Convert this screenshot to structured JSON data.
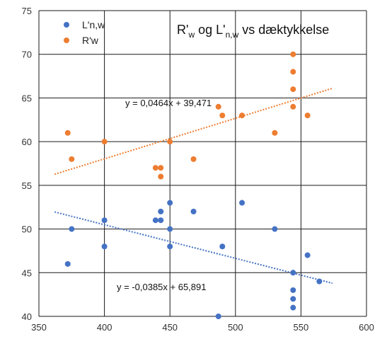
{
  "chart_data": {
    "type": "scatter",
    "title_parts": [
      {
        "text": "R'",
        "sub": false
      },
      {
        "text": "w",
        "sub": true
      },
      {
        "text": " og L'",
        "sub": false
      },
      {
        "text": "n,w",
        "sub": true
      },
      {
        "text": " vs dæktykkelse",
        "sub": false
      }
    ],
    "xlabel": "",
    "ylabel": "",
    "xlim": [
      350,
      600
    ],
    "ylim": [
      40,
      75
    ],
    "x_ticks": [
      350,
      400,
      450,
      500,
      550,
      600
    ],
    "y_ticks": [
      40,
      45,
      50,
      55,
      60,
      65,
      70,
      75
    ],
    "grid": true,
    "legend_position": "top-left",
    "series": [
      {
        "name": "L'n,w",
        "color": "#4472C4",
        "points": [
          [
            372,
            46
          ],
          [
            375,
            50
          ],
          [
            400,
            51
          ],
          [
            400,
            48
          ],
          [
            439,
            51
          ],
          [
            443,
            52
          ],
          [
            443,
            51
          ],
          [
            450,
            53
          ],
          [
            450,
            50
          ],
          [
            450,
            48
          ],
          [
            468,
            52
          ],
          [
            487,
            40
          ],
          [
            490,
            48
          ],
          [
            505,
            53
          ],
          [
            530,
            50
          ],
          [
            544,
            45
          ],
          [
            544,
            43
          ],
          [
            544,
            42
          ],
          [
            544,
            41
          ],
          [
            555,
            47
          ],
          [
            564,
            44
          ]
        ],
        "trendline": {
          "slope": -0.0385,
          "intercept": 65.891,
          "x_range": [
            362,
            574
          ],
          "label": "y = -0,0385x + 65,891"
        }
      },
      {
        "name": "R'w",
        "color": "#ED7D31",
        "points": [
          [
            372,
            61
          ],
          [
            375,
            58
          ],
          [
            400,
            60
          ],
          [
            439,
            57
          ],
          [
            443,
            57
          ],
          [
            443,
            56
          ],
          [
            450,
            60
          ],
          [
            468,
            58
          ],
          [
            487,
            64
          ],
          [
            490,
            63
          ],
          [
            505,
            63
          ],
          [
            530,
            61
          ],
          [
            544,
            70
          ],
          [
            544,
            68
          ],
          [
            544,
            66
          ],
          [
            544,
            64
          ],
          [
            555,
            63
          ]
        ],
        "trendline": {
          "slope": 0.0464,
          "intercept": 39.471,
          "x_range": [
            362,
            574
          ],
          "label": "y = 0,0464x + 39,471"
        }
      }
    ]
  }
}
